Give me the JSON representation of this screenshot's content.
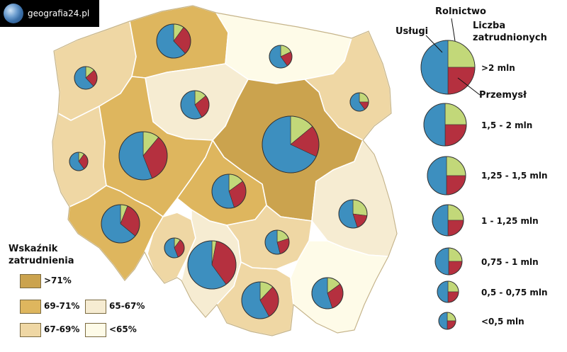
{
  "logo": {
    "text": "geografia24.pl"
  },
  "colors": {
    "uslugi": "#3d8fbf",
    "przemysl": "#b5303f",
    "rolnictwo": "#c2d879",
    "border": "#333333",
    "region_border": "#ffffff"
  },
  "pie_legend": {
    "uslugi": "Usługi",
    "rolnictwo": "Rolnictwo",
    "przemysl": "Przemysł",
    "size_title_line1": "Liczba",
    "size_title_line2": "zatrudnionych",
    "sizes": [
      ">2 mln",
      "1,5 - 2 mln",
      "1,25 - 1,5 mln",
      "1 - 1,25 mln",
      "0,75 - 1 mln",
      "0,5 - 0,75 mln",
      "<0,5 mln"
    ]
  },
  "employment_legend": {
    "title_line1": "Wskaźnik",
    "title_line2": "zatrudnienia",
    "classes": [
      {
        "label": ">71%",
        "color": "#cba34e"
      },
      {
        "label": "69-71%",
        "color": "#deb65e"
      },
      {
        "label": "67-69%",
        "color": "#efd7a4"
      },
      {
        "label": "65-67%",
        "color": "#f6ecd2"
      },
      {
        "label": "<65%",
        "color": "#fefbe8"
      }
    ]
  },
  "regions": [
    {
      "id": "zachodniopomorskie",
      "class": "67-69%",
      "uslugi": 62,
      "przemysl": 25,
      "rolnictwo": 13
    },
    {
      "id": "pomorskie",
      "class": "69-71%",
      "uslugi": 62,
      "przemysl": 28,
      "rolnictwo": 10
    },
    {
      "id": "warminsko-mazurskie",
      "class": "<65%",
      "uslugi": 60,
      "przemysl": 22,
      "rolnictwo": 18
    },
    {
      "id": "podlaskie",
      "class": "67-69%",
      "uslugi": 60,
      "przemysl": 15,
      "rolnictwo": 25
    },
    {
      "id": "lubuskie",
      "class": "67-69%",
      "uslugi": 60,
      "przemysl": 30,
      "rolnictwo": 10
    },
    {
      "id": "kujawsko-pomorskie",
      "class": "65-67%",
      "uslugi": 58,
      "przemysl": 28,
      "rolnictwo": 14
    },
    {
      "id": "wielkopolskie",
      "class": "69-71%",
      "uslugi": 56,
      "przemysl": 33,
      "rolnictwo": 11
    },
    {
      "id": "mazowieckie",
      "class": ">71%",
      "uslugi": 68,
      "przemysl": 18,
      "rolnictwo": 14
    },
    {
      "id": "lodzkie",
      "class": "69-71%",
      "uslugi": 55,
      "przemysl": 30,
      "rolnictwo": 15
    },
    {
      "id": "lubelskie",
      "class": "65-67%",
      "uslugi": 55,
      "przemysl": 18,
      "rolnictwo": 27
    },
    {
      "id": "dolnoslaskie",
      "class": "69-71%",
      "uslugi": 64,
      "przemysl": 30,
      "rolnictwo": 6
    },
    {
      "id": "opolskie",
      "class": "67-69%",
      "uslugi": 56,
      "przemysl": 34,
      "rolnictwo": 10
    },
    {
      "id": "slaskie",
      "class": "65-67%",
      "uslugi": 60,
      "przemysl": 37,
      "rolnictwo": 3
    },
    {
      "id": "swietokrzyskie",
      "class": "67-69%",
      "uslugi": 54,
      "przemysl": 26,
      "rolnictwo": 20
    },
    {
      "id": "malopolskie",
      "class": "67-69%",
      "uslugi": 58,
      "przemysl": 30,
      "rolnictwo": 12
    },
    {
      "id": "podkarpackie",
      "class": "<65%",
      "uslugi": 55,
      "przemysl": 30,
      "rolnictwo": 15
    }
  ]
}
